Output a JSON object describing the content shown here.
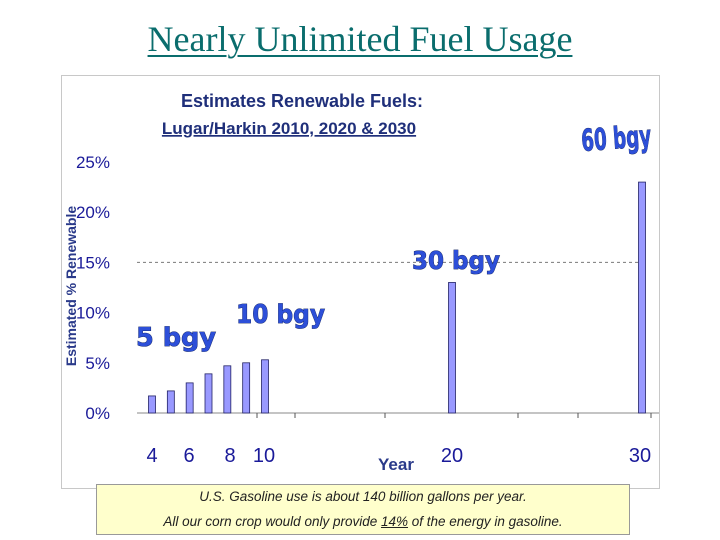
{
  "slide": {
    "title": "Nearly Unlimited Fuel Usage"
  },
  "chart_data": {
    "type": "bar",
    "title": "Estimates Renewable Fuels:",
    "subtitle": "Lugar/Harkin 2010, 2020 & 2030",
    "xlabel": "Year",
    "ylabel": "Estimated % Renewable",
    "ylim": [
      0,
      25
    ],
    "y_ticks": [
      "0%",
      "5%",
      "10%",
      "15%",
      "20%",
      "25%"
    ],
    "x_tick_labels": [
      "4",
      "6",
      "8",
      "10",
      "20",
      "30"
    ],
    "reference_line": 15,
    "series": [
      {
        "name": "Estimated % Renewable",
        "x": [
          3,
          4,
          5,
          6,
          7,
          8,
          9,
          20,
          30
        ],
        "values": [
          1.7,
          2.2,
          3.0,
          3.9,
          4.7,
          5.0,
          5.3,
          13.0,
          23.0
        ]
      }
    ],
    "annotations": [
      {
        "text": "5 bgy"
      },
      {
        "text": "10 bgy"
      },
      {
        "text": "30 bgy"
      },
      {
        "text": "60 bgy"
      }
    ]
  },
  "note": {
    "line1": "U.S. Gasoline use is about 140 billion gallons per year.",
    "line2_before": "All our corn crop would only provide ",
    "line2_highlight": "14%",
    "line2_after": " of the energy in gasoline."
  },
  "colors": {
    "title": "#0a6d6d",
    "bar_fill": "#9999ff",
    "bar_stroke": "#222266",
    "chart_title": "#1f2f7a",
    "tag_fill": "#2d4fd8",
    "note_bg": "#ffffcc"
  }
}
